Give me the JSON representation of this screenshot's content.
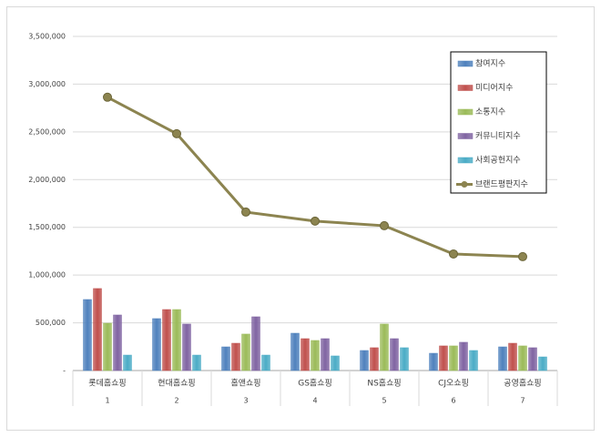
{
  "chart_data": {
    "type": "bar",
    "categories": [
      "롯데홈쇼핑",
      "현대홈쇼핑",
      "홈앤쇼핑",
      "GS홈쇼핑",
      "NS홈쇼핑",
      "CJ오쇼핑",
      "공영홈쇼핑"
    ],
    "category_numbers": [
      "1",
      "2",
      "3",
      "4",
      "5",
      "6",
      "7"
    ],
    "series": [
      {
        "name": "참여지수",
        "color": "#4f81bd",
        "values": [
          744000,
          544000,
          248000,
          391000,
          210000,
          181000,
          248000
        ]
      },
      {
        "name": "미디어지수",
        "color": "#c0504d",
        "values": [
          859000,
          639000,
          286000,
          334000,
          239000,
          258000,
          286000
        ]
      },
      {
        "name": "소통지수",
        "color": "#9bbb59",
        "values": [
          496000,
          639000,
          382000,
          315000,
          487000,
          258000,
          258000
        ]
      },
      {
        "name": "커뮤니티지수",
        "color": "#8064a2",
        "values": [
          582000,
          487000,
          563000,
          334000,
          334000,
          296000,
          239000
        ]
      },
      {
        "name": "사회공헌지수",
        "color": "#4bacc6",
        "values": [
          162000,
          162000,
          162000,
          153000,
          239000,
          210000,
          143000
        ]
      },
      {
        "name": "브랜드평판지수",
        "color": "#8c8450",
        "type": "line",
        "values": [
          2863000,
          2481000,
          1660000,
          1565000,
          1517000,
          1221000,
          1193000
        ]
      }
    ],
    "ylim": [
      0,
      3500000
    ],
    "yticks": [
      {
        "value": 0,
        "label": "-"
      },
      {
        "value": 500000,
        "label": "500,000"
      },
      {
        "value": 1000000,
        "label": "1,000,000"
      },
      {
        "value": 1500000,
        "label": "1,500,000"
      },
      {
        "value": 2000000,
        "label": "2,000,000"
      },
      {
        "value": 2500000,
        "label": "2,500,000"
      },
      {
        "value": 3000000,
        "label": "3,000,000"
      },
      {
        "value": 3500000,
        "label": "3,500,000"
      }
    ],
    "grid": true,
    "legend_position": "top-right"
  }
}
